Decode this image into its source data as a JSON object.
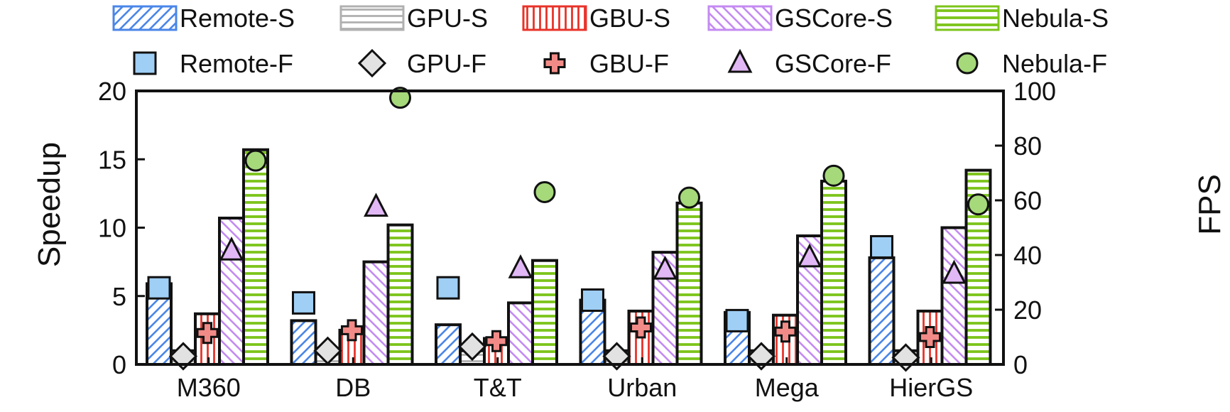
{
  "chart_data": {
    "type": "bar",
    "categories": [
      "M360",
      "DB",
      "T&T",
      "Urban",
      "Mega",
      "HierGS"
    ],
    "left_axis": {
      "label": "Speedup",
      "ylim": [
        0,
        20
      ],
      "ticks": [
        "0",
        "5",
        "10",
        "15",
        "20"
      ]
    },
    "right_axis": {
      "label": "FPS",
      "ylim": [
        0,
        100
      ],
      "ticks": [
        "0",
        "20",
        "40",
        "60",
        "80",
        "100"
      ]
    },
    "bar_series": [
      {
        "name": "Remote-S",
        "values": [
          5.9,
          3.2,
          2.9,
          4.7,
          3.8,
          7.8
        ],
        "color": "#4a86e8",
        "pattern": "diag-right"
      },
      {
        "name": "GPU-S",
        "values": [
          1,
          1,
          1,
          1,
          1,
          1
        ],
        "color": "#b0b0b0",
        "pattern": "horizontal"
      },
      {
        "name": "GBU-S",
        "values": [
          3.7,
          2.5,
          1.9,
          3.9,
          3.6,
          3.9
        ],
        "color": "#e8332a",
        "pattern": "vertical"
      },
      {
        "name": "GSCore-S",
        "values": [
          10.7,
          7.5,
          4.5,
          8.2,
          9.4,
          10.0
        ],
        "color": "#c48bf2",
        "pattern": "diag-left"
      },
      {
        "name": "Nebula-S",
        "values": [
          15.7,
          10.2,
          7.6,
          11.8,
          13.4,
          14.2
        ],
        "color": "#7cc41a",
        "pattern": "horizontal"
      }
    ],
    "marker_series": [
      {
        "name": "Remote-F",
        "values": [
          28,
          22.5,
          28,
          23.5,
          16,
          43
        ],
        "shape": "square",
        "color": "#9fcff5"
      },
      {
        "name": "GPU-F",
        "values": [
          3,
          5,
          6.5,
          3,
          3,
          2.5
        ],
        "shape": "diamond",
        "color": "#e2e2e2"
      },
      {
        "name": "GBU-F",
        "values": [
          11.5,
          12.5,
          8.5,
          13.5,
          12,
          10
        ],
        "shape": "cross",
        "color": "#f28b87"
      },
      {
        "name": "GSCore-F",
        "values": [
          41.5,
          57.5,
          35,
          34.5,
          39,
          33
        ],
        "shape": "triangle",
        "color": "#e1b8f5"
      },
      {
        "name": "Nebula-F",
        "values": [
          74.5,
          97.5,
          63,
          61,
          69,
          58.5
        ],
        "shape": "circle",
        "color": "#a6d97a"
      }
    ],
    "legend_placement": "top",
    "grid": false
  }
}
